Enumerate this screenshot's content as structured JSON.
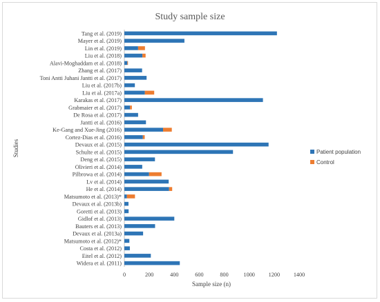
{
  "chart_data": {
    "type": "bar",
    "orientation": "horizontal",
    "stacked": true,
    "title": "Study sample size",
    "xlabel": "Sample size (n)",
    "ylabel": "Studies",
    "xlim": [
      0,
      1400
    ],
    "xticks": [
      0,
      200,
      400,
      600,
      800,
      1000,
      1200,
      1400
    ],
    "grid": false,
    "legend_position": "right",
    "categories": [
      "Tang et al. (2019)",
      "Mayer et al. (2019)",
      "Lin et al. (2019)",
      "Liu et al. (2018)",
      "Alavi-Moghaddam et al. (2018)",
      "Zhang et al. (2017)",
      "Toni Antti Juhani Jantti et al. (2017)",
      "Liu et al. (2017b)",
      "Liu et al. (2017a)",
      "Karakas et al. (2017)",
      "Grabmaier et al. (2017)",
      "De Rosa et al. (2017)",
      "Jantti et al. (2016)",
      "Ke-Gang and Xue-Jing (2016)",
      "Cortez-Dias et al. (2016)",
      "Devaux et al. (2015)",
      "Schulte et al. (2015)",
      "Deng et al. (2015)",
      "Olivieri et al. (2014)",
      "Pilbrowa et al. (2014)",
      "Lv et al. (2014)",
      "He et al. (2014)",
      "Matsumoto et al. (2013)*",
      "Devaux et al. (2013b)",
      "Goretti et al. (2013)",
      "Gidlof et al. (2013)",
      "Bauters et al. (2013)",
      "Devaux et al. (2013a)",
      "Matsumoto et al. (2012)*",
      "Costa et al. (2012)",
      "Eitel et al. (2012)",
      "Widera et al. (2011)"
    ],
    "series": [
      {
        "name": "Patient population",
        "color": "#2e75b6",
        "values": [
          1222,
          481,
          110,
          145,
          24,
          142,
          178,
          84,
          164,
          1110,
          45,
          110,
          173,
          310,
          148,
          1155,
          870,
          245,
          143,
          198,
          355,
          358,
          20,
          33,
          34,
          400,
          246,
          150,
          40,
          44,
          212,
          444
        ]
      },
      {
        "name": "Control",
        "color": "#ed7d31",
        "values": [
          0,
          0,
          55,
          25,
          5,
          0,
          0,
          0,
          75,
          0,
          15,
          0,
          0,
          70,
          15,
          0,
          0,
          0,
          0,
          100,
          0,
          25,
          65,
          0,
          0,
          0,
          0,
          0,
          0,
          0,
          0,
          0
        ]
      }
    ]
  }
}
